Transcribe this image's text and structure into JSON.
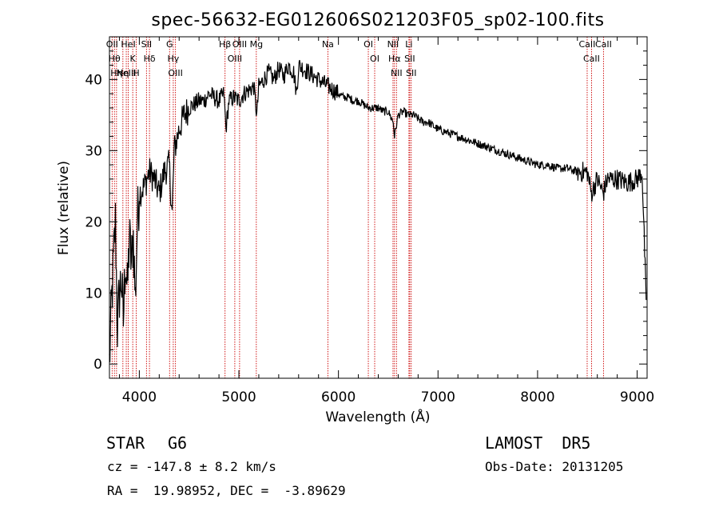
{
  "chart_data": {
    "type": "line",
    "title": "spec-56632-EG012606S021203F05_sp02-100.fits",
    "xlabel": "Wavelength (Å)",
    "ylabel": "Flux (relative)",
    "xlim": [
      3700,
      9100
    ],
    "ylim": [
      -2,
      46
    ],
    "x_ticks": [
      4000,
      5000,
      6000,
      7000,
      8000,
      9000
    ],
    "x_tick_labels": [
      "4000",
      "5000",
      "6000",
      "7000",
      "8000",
      "9000"
    ],
    "y_ticks": [
      0,
      10,
      20,
      30,
      40
    ],
    "y_tick_labels": [
      "0",
      "10",
      "20",
      "30",
      "40"
    ],
    "grid": false,
    "series": [
      {
        "x": [
          3700,
          3720,
          3740,
          3760,
          3780,
          3800,
          3820,
          3840,
          3860,
          3880,
          3900,
          3920,
          3940,
          3960,
          3980,
          4000,
          4050,
          4100,
          4150,
          4200,
          4250,
          4300,
          4330,
          4350,
          4400,
          4450,
          4500,
          4550,
          4600,
          4650,
          4700,
          4750,
          4800,
          4850,
          4870,
          4900,
          4950,
          5000,
          5050,
          5100,
          5150,
          5180,
          5200,
          5250,
          5300,
          5350,
          5400,
          5450,
          5500,
          5550,
          5580,
          5600,
          5650,
          5700,
          5750,
          5800,
          5850,
          5900,
          5950,
          6000,
          6050,
          6100,
          6150,
          6200,
          6250,
          6300,
          6350,
          6400,
          6450,
          6500,
          6550,
          6563,
          6600,
          6650,
          6700,
          6750,
          6800,
          6850,
          6900,
          6950,
          7000,
          7100,
          7200,
          7300,
          7400,
          7500,
          7600,
          7700,
          7800,
          7900,
          8000,
          8100,
          8200,
          8300,
          8400,
          8500,
          8540,
          8600,
          8660,
          8700,
          8800,
          8900,
          9000,
          9050,
          9090
        ],
        "y": [
          0,
          8,
          14,
          20,
          5,
          10,
          12,
          6,
          15,
          10,
          18,
          14,
          18,
          9,
          20,
          24,
          25,
          27,
          26,
          24,
          27,
          28,
          21,
          30,
          33,
          35,
          36,
          36.5,
          37,
          37,
          38,
          37.5,
          37,
          38,
          33,
          37,
          37.5,
          37,
          38,
          38.5,
          39,
          35,
          39,
          40,
          41,
          40,
          41.5,
          40.5,
          42,
          41,
          38,
          42,
          41.5,
          41,
          40.5,
          40,
          39.5,
          39,
          38.5,
          38,
          37.5,
          37.5,
          37,
          37,
          36.5,
          36,
          36,
          36,
          35.5,
          35.5,
          34,
          32,
          35,
          35.5,
          35,
          35,
          34.5,
          34,
          34,
          33.5,
          33,
          32.5,
          32,
          31.5,
          31,
          30.5,
          30,
          29.5,
          29,
          28.5,
          28,
          28,
          27.5,
          27.5,
          27,
          27,
          24,
          26,
          24,
          26,
          26,
          25.5,
          26,
          27,
          9
        ]
      }
    ],
    "spectral_lines": [
      {
        "wavelength": 3727,
        "label": "OII"
      },
      {
        "wavelength": 3750,
        "label": "Hθ"
      },
      {
        "wavelength": 3771,
        "label": "Hη"
      },
      {
        "wavelength": 3835,
        "label": "Hη"
      },
      {
        "wavelength": 3869,
        "label": "NeIII"
      },
      {
        "wavelength": 3889,
        "label": "HeI"
      },
      {
        "wavelength": 3934,
        "label": "K"
      },
      {
        "wavelength": 3969,
        "label": "H"
      },
      {
        "wavelength": 4072,
        "label": "SII"
      },
      {
        "wavelength": 4102,
        "label": "Hδ"
      },
      {
        "wavelength": 4304,
        "label": "G"
      },
      {
        "wavelength": 4341,
        "label": "Hγ"
      },
      {
        "wavelength": 4363,
        "label": "OIII"
      },
      {
        "wavelength": 4861,
        "label": "Hβ"
      },
      {
        "wavelength": 4959,
        "label": "OIII"
      },
      {
        "wavelength": 5007,
        "label": "OIII"
      },
      {
        "wavelength": 5175,
        "label": "Mg"
      },
      {
        "wavelength": 5894,
        "label": "Na"
      },
      {
        "wavelength": 6300,
        "label": "OI"
      },
      {
        "wavelength": 6364,
        "label": "OI"
      },
      {
        "wavelength": 6548,
        "label": "NII"
      },
      {
        "wavelength": 6563,
        "label": "Hα"
      },
      {
        "wavelength": 6583,
        "label": "NII"
      },
      {
        "wavelength": 6708,
        "label": "Li"
      },
      {
        "wavelength": 6716,
        "label": "SII"
      },
      {
        "wavelength": 6731,
        "label": "SII"
      },
      {
        "wavelength": 8498,
        "label": "CaII"
      },
      {
        "wavelength": 8542,
        "label": "CaII"
      },
      {
        "wavelength": 8662,
        "label": "CaII"
      }
    ],
    "line_color": "#cc0000",
    "spectrum_color": "#000000"
  },
  "info": {
    "object_class": "STAR",
    "subclass": "G6",
    "survey": "LAMOST  DR5",
    "redshift": "cz = -147.8 ± 8.2 km/s",
    "obs_date": "Obs-Date: 20131205",
    "coords": "RA =  19.98952, DEC =  -3.89629"
  }
}
